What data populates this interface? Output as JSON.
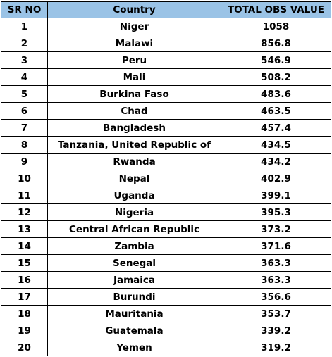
{
  "table": {
    "headers": {
      "sr": "SR NO",
      "country": "Country",
      "value": "TOTAL OBS VALUE"
    },
    "rows": [
      {
        "sr": "1",
        "country": "Niger",
        "value": "1058"
      },
      {
        "sr": "2",
        "country": "Malawi",
        "value": "856.8"
      },
      {
        "sr": "3",
        "country": "Peru",
        "value": "546.9"
      },
      {
        "sr": "4",
        "country": "Mali",
        "value": "508.2"
      },
      {
        "sr": "5",
        "country": "Burkina Faso",
        "value": "483.6"
      },
      {
        "sr": "6",
        "country": "Chad",
        "value": "463.5"
      },
      {
        "sr": "7",
        "country": "Bangladesh",
        "value": "457.4"
      },
      {
        "sr": "8",
        "country": "Tanzania, United Republic of",
        "value": "434.5"
      },
      {
        "sr": "9",
        "country": "Rwanda",
        "value": "434.2"
      },
      {
        "sr": "10",
        "country": "Nepal",
        "value": "402.9"
      },
      {
        "sr": "11",
        "country": "Uganda",
        "value": "399.1"
      },
      {
        "sr": "12",
        "country": "Nigeria",
        "value": "395.3"
      },
      {
        "sr": "13",
        "country": "Central African Republic",
        "value": "373.2"
      },
      {
        "sr": "14",
        "country": "Zambia",
        "value": "371.6"
      },
      {
        "sr": "15",
        "country": "Senegal",
        "value": "363.3"
      },
      {
        "sr": "16",
        "country": "Jamaica",
        "value": "363.3"
      },
      {
        "sr": "17",
        "country": "Burundi",
        "value": "356.6"
      },
      {
        "sr": "18",
        "country": "Mauritania",
        "value": "353.7"
      },
      {
        "sr": "19",
        "country": "Guatemala",
        "value": "339.2"
      },
      {
        "sr": "20",
        "country": "Yemen",
        "value": "319.2"
      }
    ]
  },
  "colors": {
    "header_background": "#9ac3e6",
    "border": "#000000"
  }
}
